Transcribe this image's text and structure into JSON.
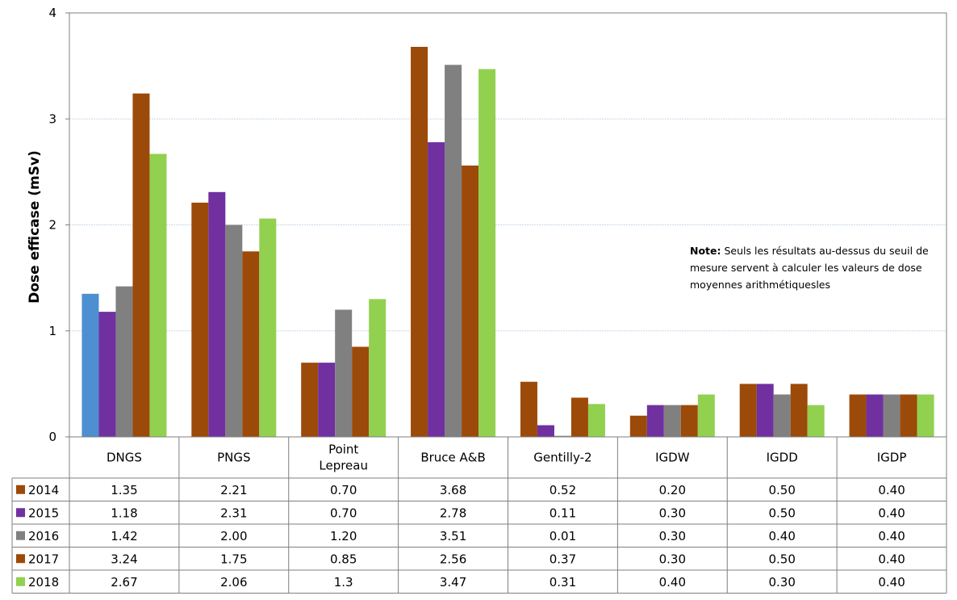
{
  "chart_data": {
    "type": "bar",
    "ylabel": "Dose efficase (mSv)",
    "ylim": [
      0,
      4
    ],
    "yticks": [
      "0",
      "1",
      "2",
      "3",
      "4"
    ],
    "grid": true,
    "legend": "data-table",
    "categories": [
      "DNGS",
      "PNGS",
      "Point Lepreau",
      "Bruce A&B",
      "Gentilly-2",
      "IGDW",
      "IGDD",
      "IGDP"
    ],
    "category_lines": [
      [
        "DNGS"
      ],
      [
        "PNGS"
      ],
      [
        "Point",
        "Lepreau"
      ],
      [
        "Bruce A&B"
      ],
      [
        "Gentilly-2"
      ],
      [
        "IGDW"
      ],
      [
        "IGDD"
      ],
      [
        "IGDP"
      ]
    ],
    "series": [
      {
        "name": "2014",
        "color": "#9c4a09",
        "first_color": "#4e8fd1",
        "values": [
          1.35,
          2.21,
          0.7,
          3.68,
          0.52,
          0.2,
          0.5,
          0.4
        ],
        "labels": [
          "1.35",
          "2.21",
          "0.70",
          "3.68",
          "0.52",
          "0.20",
          "0.50",
          "0.40"
        ]
      },
      {
        "name": "2015",
        "color": "#7030a0",
        "values": [
          1.18,
          2.31,
          0.7,
          2.78,
          0.11,
          0.3,
          0.5,
          0.4
        ],
        "labels": [
          "1.18",
          "2.31",
          "0.70",
          "2.78",
          "0.11",
          "0.30",
          "0.50",
          "0.40"
        ]
      },
      {
        "name": "2016",
        "color": "#808080",
        "values": [
          1.42,
          2.0,
          1.2,
          3.51,
          0.01,
          0.3,
          0.4,
          0.4
        ],
        "labels": [
          "1.42",
          "2.00",
          "1.20",
          "3.51",
          "0.01",
          "0.30",
          "0.40",
          "0.40"
        ]
      },
      {
        "name": "2017",
        "color": "#9c4a09",
        "values": [
          3.24,
          1.75,
          0.85,
          2.56,
          0.37,
          0.3,
          0.5,
          0.4
        ],
        "labels": [
          "3.24",
          "1.75",
          "0.85",
          "2.56",
          "0.37",
          "0.30",
          "0.50",
          "0.40"
        ]
      },
      {
        "name": "2018",
        "color": "#92d050",
        "values": [
          2.67,
          2.06,
          1.3,
          3.47,
          0.31,
          0.4,
          0.3,
          0.4
        ],
        "labels": [
          "2.67",
          "2.06",
          "1.3",
          "3.47",
          "0.31",
          "0.40",
          "0.30",
          "0.40"
        ]
      }
    ]
  },
  "note": {
    "label": "Note:",
    "text": "Seuls les résultats au-dessus du seuil de mesure servent à calculer les valeurs de dose moyennes arithmétiquesles"
  }
}
